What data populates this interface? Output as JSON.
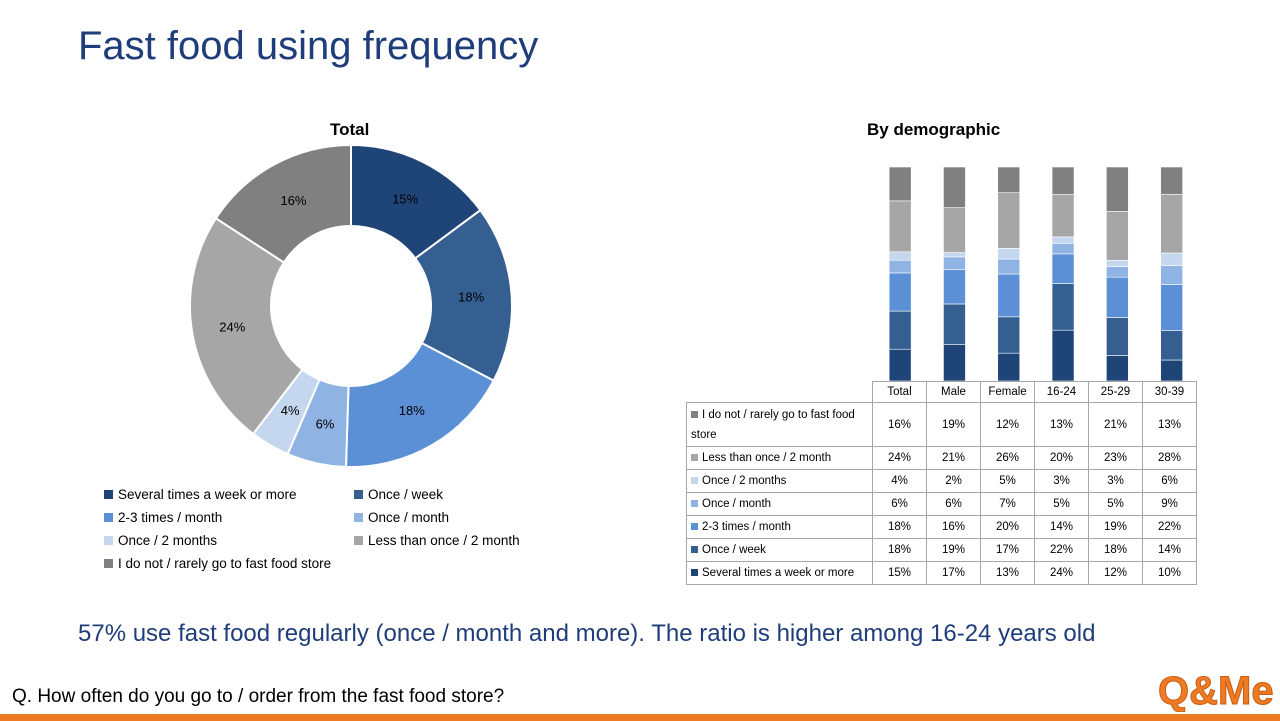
{
  "page": {
    "title": "Fast food using frequency",
    "conclusion": "57% use fast food regularly (once / month and more). The ratio is higher among 16-24 years old",
    "question": "Q. How often do you go to / order from the fast food store?",
    "logo_text": "Q&Me",
    "footer_color": "#ee7a23"
  },
  "chart_data": [
    {
      "type": "pie",
      "donut": true,
      "title": "Total",
      "categories": [
        "Several times a week or more",
        "Once / week",
        "2-3 times / month",
        "Once / month",
        "Once / 2 months",
        "Less than once / 2 month",
        "I do not / rarely go to fast food store"
      ],
      "values": [
        15,
        18,
        18,
        6,
        4,
        24,
        16
      ],
      "labels": [
        "15%",
        "18%",
        "18%",
        "6%",
        "4%",
        "24%",
        "16%"
      ],
      "colors": [
        "#1f4478",
        "#355f91",
        "#5b8fd6",
        "#8fb3e3",
        "#c5d7ef",
        "#a6a6a6",
        "#808080"
      ],
      "legend_placement": "bottom"
    },
    {
      "type": "bar",
      "stacked": true,
      "title": "By demographic",
      "categories": [
        "Total",
        "Male",
        "Female",
        "16-24",
        "25-29",
        "30-39"
      ],
      "ylim": [
        0,
        100
      ],
      "series": [
        {
          "name": "Several times a week or more",
          "color": "#1f4478",
          "values": [
            15,
            17,
            13,
            24,
            12,
            10
          ]
        },
        {
          "name": "Once / week",
          "color": "#355f91",
          "values": [
            18,
            19,
            17,
            22,
            18,
            14
          ]
        },
        {
          "name": "2-3 times / month",
          "color": "#5b8fd6",
          "values": [
            18,
            16,
            20,
            14,
            19,
            22
          ]
        },
        {
          "name": "Once / month",
          "color": "#8fb3e3",
          "values": [
            6,
            6,
            7,
            5,
            5,
            9
          ]
        },
        {
          "name": "Once / 2 months",
          "color": "#c5d7ef",
          "values": [
            4,
            2,
            5,
            3,
            3,
            6
          ]
        },
        {
          "name": "Less than once / 2 month",
          "color": "#a6a6a6",
          "values": [
            24,
            21,
            26,
            20,
            23,
            28
          ]
        },
        {
          "name": "I do not / rarely go to fast food store",
          "color": "#808080",
          "values": [
            16,
            19,
            12,
            13,
            21,
            13
          ]
        }
      ],
      "table_rows_order": [
        6,
        5,
        4,
        3,
        2,
        1,
        0
      ],
      "table_labels": [
        [
          "15%",
          "17%",
          "13%",
          "24%",
          "12%",
          "10%"
        ],
        [
          "18%",
          "19%",
          "17%",
          "22%",
          "18%",
          "14%"
        ],
        [
          "18%",
          "16%",
          "20%",
          "14%",
          "19%",
          "22%"
        ],
        [
          "6%",
          "6%",
          "7%",
          "5%",
          "5%",
          "9%"
        ],
        [
          "4%",
          "2%",
          "5%",
          "3%",
          "3%",
          "6%"
        ],
        [
          "24%",
          "21%",
          "26%",
          "20%",
          "23%",
          "28%"
        ],
        [
          "16%",
          "19%",
          "12%",
          "13%",
          "21%",
          "13%"
        ]
      ]
    }
  ]
}
